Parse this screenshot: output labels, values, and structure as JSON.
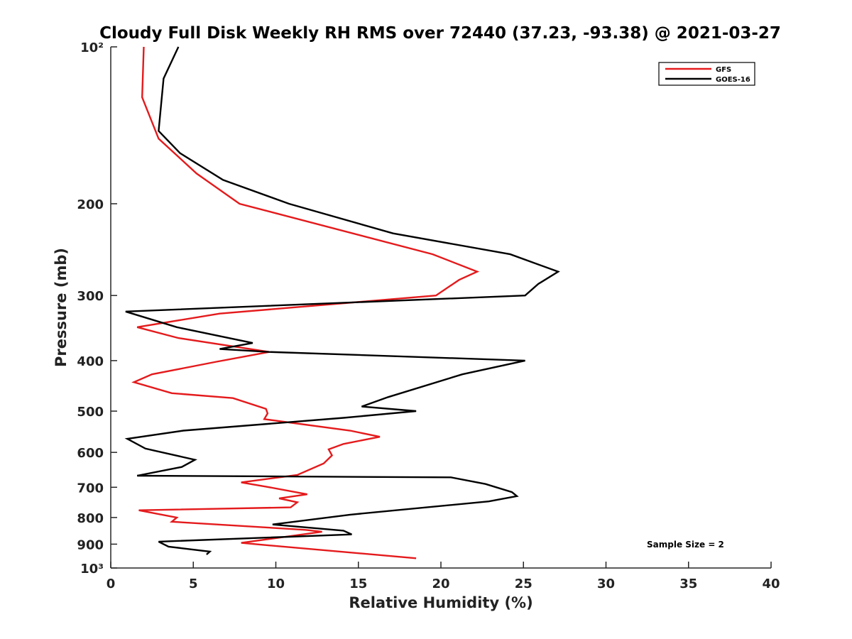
{
  "chart_data": {
    "type": "line",
    "title": "Cloudy Full Disk Weekly RH RMS over 72440 (37.23, -93.38) @ 2021-03-27",
    "xlabel": "Relative Humidity (%)",
    "ylabel": "Pressure (mb)",
    "xlim": [
      0,
      40
    ],
    "ylim": [
      100,
      1000
    ],
    "y_scale": "log",
    "y_reversed": true,
    "grid": false,
    "legend_position": "top-right",
    "x_ticks": [
      0,
      5,
      10,
      15,
      20,
      25,
      30,
      35,
      40
    ],
    "x_tick_labels": [
      "0",
      "5",
      "10",
      "15",
      "20",
      "25",
      "30",
      "35",
      "40"
    ],
    "y_ticks": [
      100,
      200,
      300,
      400,
      500,
      600,
      700,
      800,
      900,
      1000
    ],
    "y_tick_labels": [
      "10²",
      "200",
      "300",
      "400",
      "500",
      "600",
      "700",
      "800",
      "900",
      "10³"
    ],
    "annotation": "Sample Size = 2",
    "series": [
      {
        "name": "GFS",
        "color": "#e41a1c",
        "points": [
          [
            2.0,
            100
          ],
          [
            1.9,
            125
          ],
          [
            2.9,
            150
          ],
          [
            5.2,
            175
          ],
          [
            7.8,
            200
          ],
          [
            19.5,
            250
          ],
          [
            22.2,
            270
          ],
          [
            21.1,
            280
          ],
          [
            19.7,
            300
          ],
          [
            6.6,
            325
          ],
          [
            1.6,
            345
          ],
          [
            4.1,
            362
          ],
          [
            9.6,
            385
          ],
          [
            6.4,
            402
          ],
          [
            2.5,
            425
          ],
          [
            1.4,
            440
          ],
          [
            3.7,
            462
          ],
          [
            7.4,
            472
          ],
          [
            9.4,
            495
          ],
          [
            9.5,
            505
          ],
          [
            9.3,
            518
          ],
          [
            14.5,
            545
          ],
          [
            16.3,
            560
          ],
          [
            14.1,
            578
          ],
          [
            13.2,
            592
          ],
          [
            13.4,
            608
          ],
          [
            12.9,
            630
          ],
          [
            11.3,
            663
          ],
          [
            7.9,
            685
          ],
          [
            9.4,
            698
          ],
          [
            11.9,
            722
          ],
          [
            10.2,
            735
          ],
          [
            11.3,
            748
          ],
          [
            10.9,
            765
          ],
          [
            1.7,
            775
          ],
          [
            4.0,
            800
          ],
          [
            3.7,
            815
          ],
          [
            11.8,
            845
          ],
          [
            12.8,
            852
          ],
          [
            7.9,
            895
          ],
          [
            9.6,
            905
          ],
          [
            18.5,
            958
          ]
        ]
      },
      {
        "name": "GOES-16",
        "color": "#000000",
        "points": [
          [
            4.1,
            100
          ],
          [
            3.2,
            115
          ],
          [
            2.9,
            145
          ],
          [
            4.2,
            160
          ],
          [
            6.8,
            180
          ],
          [
            10.8,
            200
          ],
          [
            17.1,
            228
          ],
          [
            24.2,
            250
          ],
          [
            27.1,
            270
          ],
          [
            25.9,
            285
          ],
          [
            25.1,
            300
          ],
          [
            0.9,
            322
          ],
          [
            4.0,
            345
          ],
          [
            8.6,
            370
          ],
          [
            6.6,
            380
          ],
          [
            9.6,
            385
          ],
          [
            25.1,
            400
          ],
          [
            21.3,
            425
          ],
          [
            16.8,
            470
          ],
          [
            15.2,
            490
          ],
          [
            18.5,
            500
          ],
          [
            14.1,
            515
          ],
          [
            4.4,
            545
          ],
          [
            1.0,
            565
          ],
          [
            2.1,
            590
          ],
          [
            5.1,
            620
          ],
          [
            4.3,
            640
          ],
          [
            1.6,
            665
          ],
          [
            20.6,
            670
          ],
          [
            22.7,
            690
          ],
          [
            24.3,
            715
          ],
          [
            24.6,
            728
          ],
          [
            22.9,
            745
          ],
          [
            14.5,
            790
          ],
          [
            9.8,
            825
          ],
          [
            14.1,
            848
          ],
          [
            14.6,
            862
          ],
          [
            2.9,
            890
          ],
          [
            3.5,
            910
          ],
          [
            6.0,
            930
          ],
          [
            5.8,
            942
          ]
        ]
      }
    ]
  }
}
